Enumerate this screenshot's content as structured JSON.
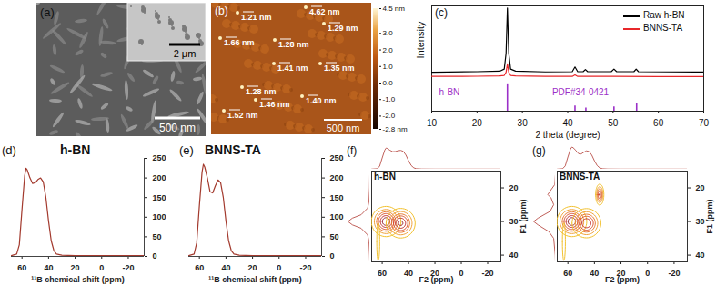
{
  "images": [
    {
      "type": "sem_image",
      "panel_label": "(a)",
      "inset_scale_bar": "2 μm",
      "scale_bar": "500 nm"
    },
    {
      "type": "afm_image",
      "panel_label": "(b)",
      "height_labels": [
        "1.21 nm",
        "4.62 nm",
        "1.66 nm",
        "1.28 nm",
        "1.29 nm",
        "1.41 nm",
        "1.35 nm",
        "1.28 nm",
        "1.46 nm",
        "1.40 nm",
        "1.52 nm"
      ],
      "scale_bar": "500 nm",
      "colorbar": {
        "range": [
          -2.8,
          4.5
        ],
        "ticks": [
          {
            "value": 4.5,
            "label": "4.5 nm"
          },
          {
            "value": 3,
            "label": "3.0"
          },
          {
            "value": 2,
            "label": "2.0"
          },
          {
            "value": 1,
            "label": "1.0"
          },
          {
            "value": 0,
            "label": "0.0"
          },
          {
            "value": -1,
            "label": "-1.0"
          },
          {
            "value": -2,
            "label": "-2.0"
          },
          {
            "value": -2.8,
            "label": "-2.8 nm"
          }
        ]
      }
    }
  ],
  "chart_data": [
    {
      "type": "line",
      "panel_label": "(c)",
      "x_label": "2 theta (degree)",
      "y_label": "Intensity",
      "xlim": [
        10,
        70
      ],
      "xticks": [
        10,
        20,
        30,
        40,
        50,
        60,
        70
      ],
      "ylim": [
        0,
        100
      ],
      "tick_labels": "x",
      "legend": "top-right",
      "series": [
        {
          "name": "Raw h-BN",
          "color": "#000000",
          "x": [
            10,
            20,
            25,
            26,
            26.4,
            26.7,
            27,
            27.4,
            28.5,
            35,
            41,
            41.6,
            42.2,
            43.4,
            43.9,
            44.4,
            49.6,
            50.2,
            50.8,
            54.6,
            55.1,
            55.6,
            62,
            70
          ],
          "values": [
            37,
            37.5,
            38,
            40,
            55,
            98,
            55,
            40,
            38,
            37.3,
            37.5,
            42,
            37.5,
            37.5,
            39.5,
            37.5,
            37.5,
            40,
            37.5,
            37.5,
            40,
            37.5,
            37.3,
            37.2
          ]
        },
        {
          "name": "BNNS-TA",
          "color": "#e8272a",
          "x": [
            10,
            20,
            25,
            26,
            26.4,
            26.7,
            27,
            27.4,
            28.5,
            35,
            41,
            41.6,
            42.2,
            50,
            60,
            70
          ],
          "values": [
            33,
            33.2,
            33.5,
            34,
            37,
            45,
            37,
            34,
            33.5,
            33,
            33,
            34.5,
            33,
            33,
            32.8,
            32.8
          ]
        }
      ],
      "reference": {
        "type": "stick",
        "name": "h-BN",
        "card": "PDF#34-0421",
        "color": "#9b30c8",
        "x": [
          26.7,
          41.6,
          44.0,
          50.2,
          55.2
        ],
        "values": [
          26,
          5,
          3,
          4,
          7
        ]
      }
    },
    {
      "type": "line",
      "panel_label": "(d)",
      "title": "h-BN",
      "x_label": "¹¹B chemical shift (ppm)",
      "xlim": [
        68,
        -32
      ],
      "xticks": [
        60,
        40,
        20,
        0,
        -20
      ],
      "ylim": [
        0,
        250
      ],
      "yticks": [
        0,
        50,
        100,
        150,
        200,
        250
      ],
      "color": "#a33a2e",
      "x": [
        68,
        64,
        62,
        60,
        58,
        57,
        56,
        54,
        52,
        50,
        48,
        46,
        44,
        42,
        40,
        38,
        36,
        34,
        30,
        20,
        0,
        -20,
        -32
      ],
      "values": [
        2,
        6,
        30,
        120,
        205,
        225,
        220,
        200,
        186,
        188,
        196,
        200,
        190,
        150,
        90,
        40,
        15,
        6,
        3,
        2,
        2,
        2,
        2
      ]
    },
    {
      "type": "line",
      "panel_label": "(e)",
      "title": "BNNS-TA",
      "x_label": "¹¹B chemical shift (ppm)",
      "xlim": [
        68,
        -32
      ],
      "xticks": [
        60,
        40,
        20,
        0,
        -20
      ],
      "ylim": [
        0,
        250
      ],
      "yticks": [
        0,
        50,
        100,
        150,
        200,
        250
      ],
      "color": "#a33a2e",
      "x": [
        68,
        64,
        62,
        60,
        58,
        57,
        56,
        54,
        52,
        50,
        48,
        46,
        44,
        42,
        40,
        38,
        36,
        34,
        30,
        20,
        0,
        -20,
        -32
      ],
      "values": [
        2,
        6,
        35,
        130,
        215,
        235,
        228,
        200,
        165,
        162,
        180,
        195,
        188,
        150,
        90,
        40,
        15,
        6,
        3,
        2,
        2,
        2,
        2
      ]
    },
    {
      "type": "contour",
      "panel_label": "(f)",
      "title": "h-BN",
      "x_label": "F2 (ppm)",
      "y_label": "F1 (ppm)",
      "xlim": [
        68,
        -30
      ],
      "xticks": [
        60,
        40,
        20,
        0,
        -20
      ],
      "ylim": [
        42,
        15
      ],
      "yticks": [
        20,
        30,
        40
      ],
      "peaks": [
        {
          "f2": 57,
          "f1": 30,
          "width_f2": 5,
          "width_f1": 2,
          "height": 1
        },
        {
          "f2": 46,
          "f1": 30.5,
          "width_f2": 5,
          "width_f1": 2,
          "height": 0.9
        },
        {
          "f2": 63,
          "f1": 36,
          "width_f2": 1,
          "width_f1": 5,
          "height": 0.15
        }
      ],
      "f1_projection": {
        "x": [
          16,
          20,
          24,
          26,
          28,
          29,
          30,
          31,
          32,
          34,
          36,
          40,
          42
        ],
        "values": [
          0,
          1,
          4,
          10,
          40,
          80,
          100,
          80,
          40,
          10,
          4,
          1,
          0
        ]
      }
    },
    {
      "type": "contour",
      "panel_label": "(g)",
      "title": "BNNS-TA",
      "x_label": "F2 (ppm)",
      "y_label": "F1 (ppm)",
      "xlim": [
        68,
        -30
      ],
      "xticks": [
        60,
        40,
        20,
        0,
        -20
      ],
      "ylim": [
        42,
        15
      ],
      "yticks": [
        20,
        30,
        40
      ],
      "peaks": [
        {
          "f2": 57,
          "f1": 30,
          "width_f2": 5,
          "width_f1": 2,
          "height": 1
        },
        {
          "f2": 46,
          "f1": 30.5,
          "width_f2": 5,
          "width_f1": 2,
          "height": 0.85
        },
        {
          "f2": 36,
          "f1": 22,
          "width_f2": 1.5,
          "width_f1": 1.5,
          "height": 0.7
        },
        {
          "f2": 63,
          "f1": 36,
          "width_f2": 1,
          "width_f1": 5,
          "height": 0.15
        }
      ],
      "f1_projection": {
        "x": [
          16,
          19,
          21,
          22,
          23,
          25,
          27,
          29,
          30,
          31,
          33,
          35,
          40,
          42
        ],
        "values": [
          0,
          3,
          25,
          35,
          20,
          8,
          25,
          80,
          100,
          80,
          30,
          8,
          1,
          0
        ]
      }
    }
  ]
}
